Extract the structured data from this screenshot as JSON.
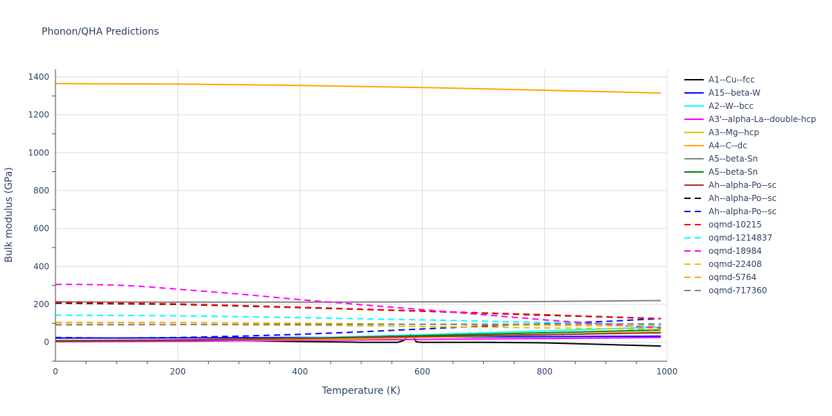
{
  "chart_data": {
    "type": "line",
    "title": "Phonon/QHA Predictions",
    "xlabel": "Temperature (K)",
    "ylabel": "Bulk modulus (GPa)",
    "xlim": [
      0,
      1000
    ],
    "ylim": [
      -100,
      1440
    ],
    "xticks": [
      0,
      200,
      400,
      600,
      800,
      1000
    ],
    "yticks": [
      0,
      200,
      400,
      600,
      800,
      1000,
      1200,
      1400
    ],
    "grid": true,
    "legend_position": "right",
    "series": [
      {
        "name": "A1--Cu--fcc",
        "color": "#000000",
        "dash": "solid",
        "x": [
          0,
          100,
          200,
          300,
          400,
          500,
          560,
          570,
          580,
          585,
          590,
          600,
          700,
          800,
          900,
          990
        ],
        "y": [
          5,
          6,
          8,
          9,
          4,
          0,
          0,
          10,
          40,
          30,
          2,
          0,
          0,
          -3,
          -12,
          -20
        ]
      },
      {
        "name": "A15--beta-W",
        "color": "#0000ff",
        "dash": "solid",
        "x": [
          0,
          200,
          400,
          600,
          800,
          990
        ],
        "y": [
          22,
          23,
          25,
          27,
          30,
          32
        ]
      },
      {
        "name": "A2--W--bcc",
        "color": "#00ffff",
        "dash": "solid",
        "x": [
          0,
          200,
          400,
          600,
          800,
          990
        ],
        "y": [
          5,
          10,
          22,
          40,
          60,
          80
        ]
      },
      {
        "name": "A3'--alpha-La--double-hcp",
        "color": "#ff00ff",
        "dash": "solid",
        "x": [
          0,
          200,
          400,
          600,
          800,
          990
        ],
        "y": [
          3,
          5,
          10,
          15,
          20,
          25
        ]
      },
      {
        "name": "A3--Mg--hcp",
        "color": "#ddc700",
        "dash": "solid",
        "x": [
          0,
          200,
          400,
          500,
          600,
          800,
          990
        ],
        "y": [
          10,
          12,
          15,
          18,
          25,
          40,
          55
        ]
      },
      {
        "name": "A4--C--dc",
        "color": "#ffa500",
        "dash": "solid",
        "x": [
          0,
          200,
          400,
          600,
          800,
          990
        ],
        "y": [
          1365,
          1362,
          1355,
          1344,
          1330,
          1315
        ]
      },
      {
        "name": "A5--beta-Sn",
        "color": "#808080",
        "dash": "solid",
        "x": [
          0,
          200,
          400,
          600,
          800,
          990
        ],
        "y": [
          213,
          212,
          212,
          213,
          215,
          220
        ]
      },
      {
        "name": "A5--beta-Sn",
        "color": "#008000",
        "dash": "solid",
        "x": [
          0,
          200,
          400,
          600,
          800,
          990
        ],
        "y": [
          5,
          10,
          20,
          35,
          50,
          65
        ]
      },
      {
        "name": "Ah--alpha-Po--sc",
        "color": "#a52a2a",
        "dash": "solid",
        "x": [
          0,
          200,
          400,
          600,
          800,
          990
        ],
        "y": [
          8,
          12,
          20,
          30,
          40,
          50
        ]
      },
      {
        "name": "Ah--alpha-Po--sc",
        "color": "#000000",
        "dash": "dash",
        "x": [
          0,
          200,
          400,
          600,
          800,
          990
        ],
        "y": [
          207,
          200,
          183,
          164,
          143,
          125
        ]
      },
      {
        "name": "Ah--alpha-Po--sc",
        "color": "#0000ff",
        "dash": "dash",
        "x": [
          0,
          100,
          200,
          300,
          400,
          500,
          600,
          700,
          800,
          900,
          990
        ],
        "y": [
          25,
          22,
          25,
          32,
          42,
          55,
          70,
          85,
          98,
          110,
          125
        ]
      },
      {
        "name": "oqmd-10215",
        "color": "#ff0000",
        "dash": "dash",
        "x": [
          0,
          200,
          400,
          600,
          800,
          990
        ],
        "y": [
          212,
          202,
          185,
          165,
          145,
          125
        ]
      },
      {
        "name": "oqmd-1214837",
        "color": "#00ffff",
        "dash": "dash",
        "x": [
          0,
          200,
          400,
          600,
          800,
          990
        ],
        "y": [
          143,
          140,
          130,
          118,
          105,
          92
        ]
      },
      {
        "name": "oqmd-18984",
        "color": "#ff00ff",
        "dash": "dash",
        "x": [
          0,
          50,
          100,
          150,
          200,
          300,
          400,
          500,
          600,
          700,
          800,
          900,
          990
        ],
        "y": [
          305,
          305,
          302,
          293,
          280,
          255,
          225,
          198,
          172,
          145,
          118,
          95,
          75
        ]
      },
      {
        "name": "oqmd-22408",
        "color": "#ddc700",
        "dash": "dash",
        "x": [
          0,
          200,
          400,
          600,
          800,
          990
        ],
        "y": [
          95,
          94,
          90,
          83,
          76,
          68
        ]
      },
      {
        "name": "oqmd-5764",
        "color": "#ffa500",
        "dash": "dash",
        "x": [
          0,
          200,
          400,
          600,
          800,
          990
        ],
        "y": [
          105,
          104,
          100,
          95,
          90,
          85
        ]
      },
      {
        "name": "oqmd-717360",
        "color": "#808080",
        "dash": "dash",
        "x": [
          0,
          200,
          400,
          600,
          800,
          990
        ],
        "y": [
          92,
          93,
          94,
          95,
          96,
          97
        ]
      }
    ]
  }
}
